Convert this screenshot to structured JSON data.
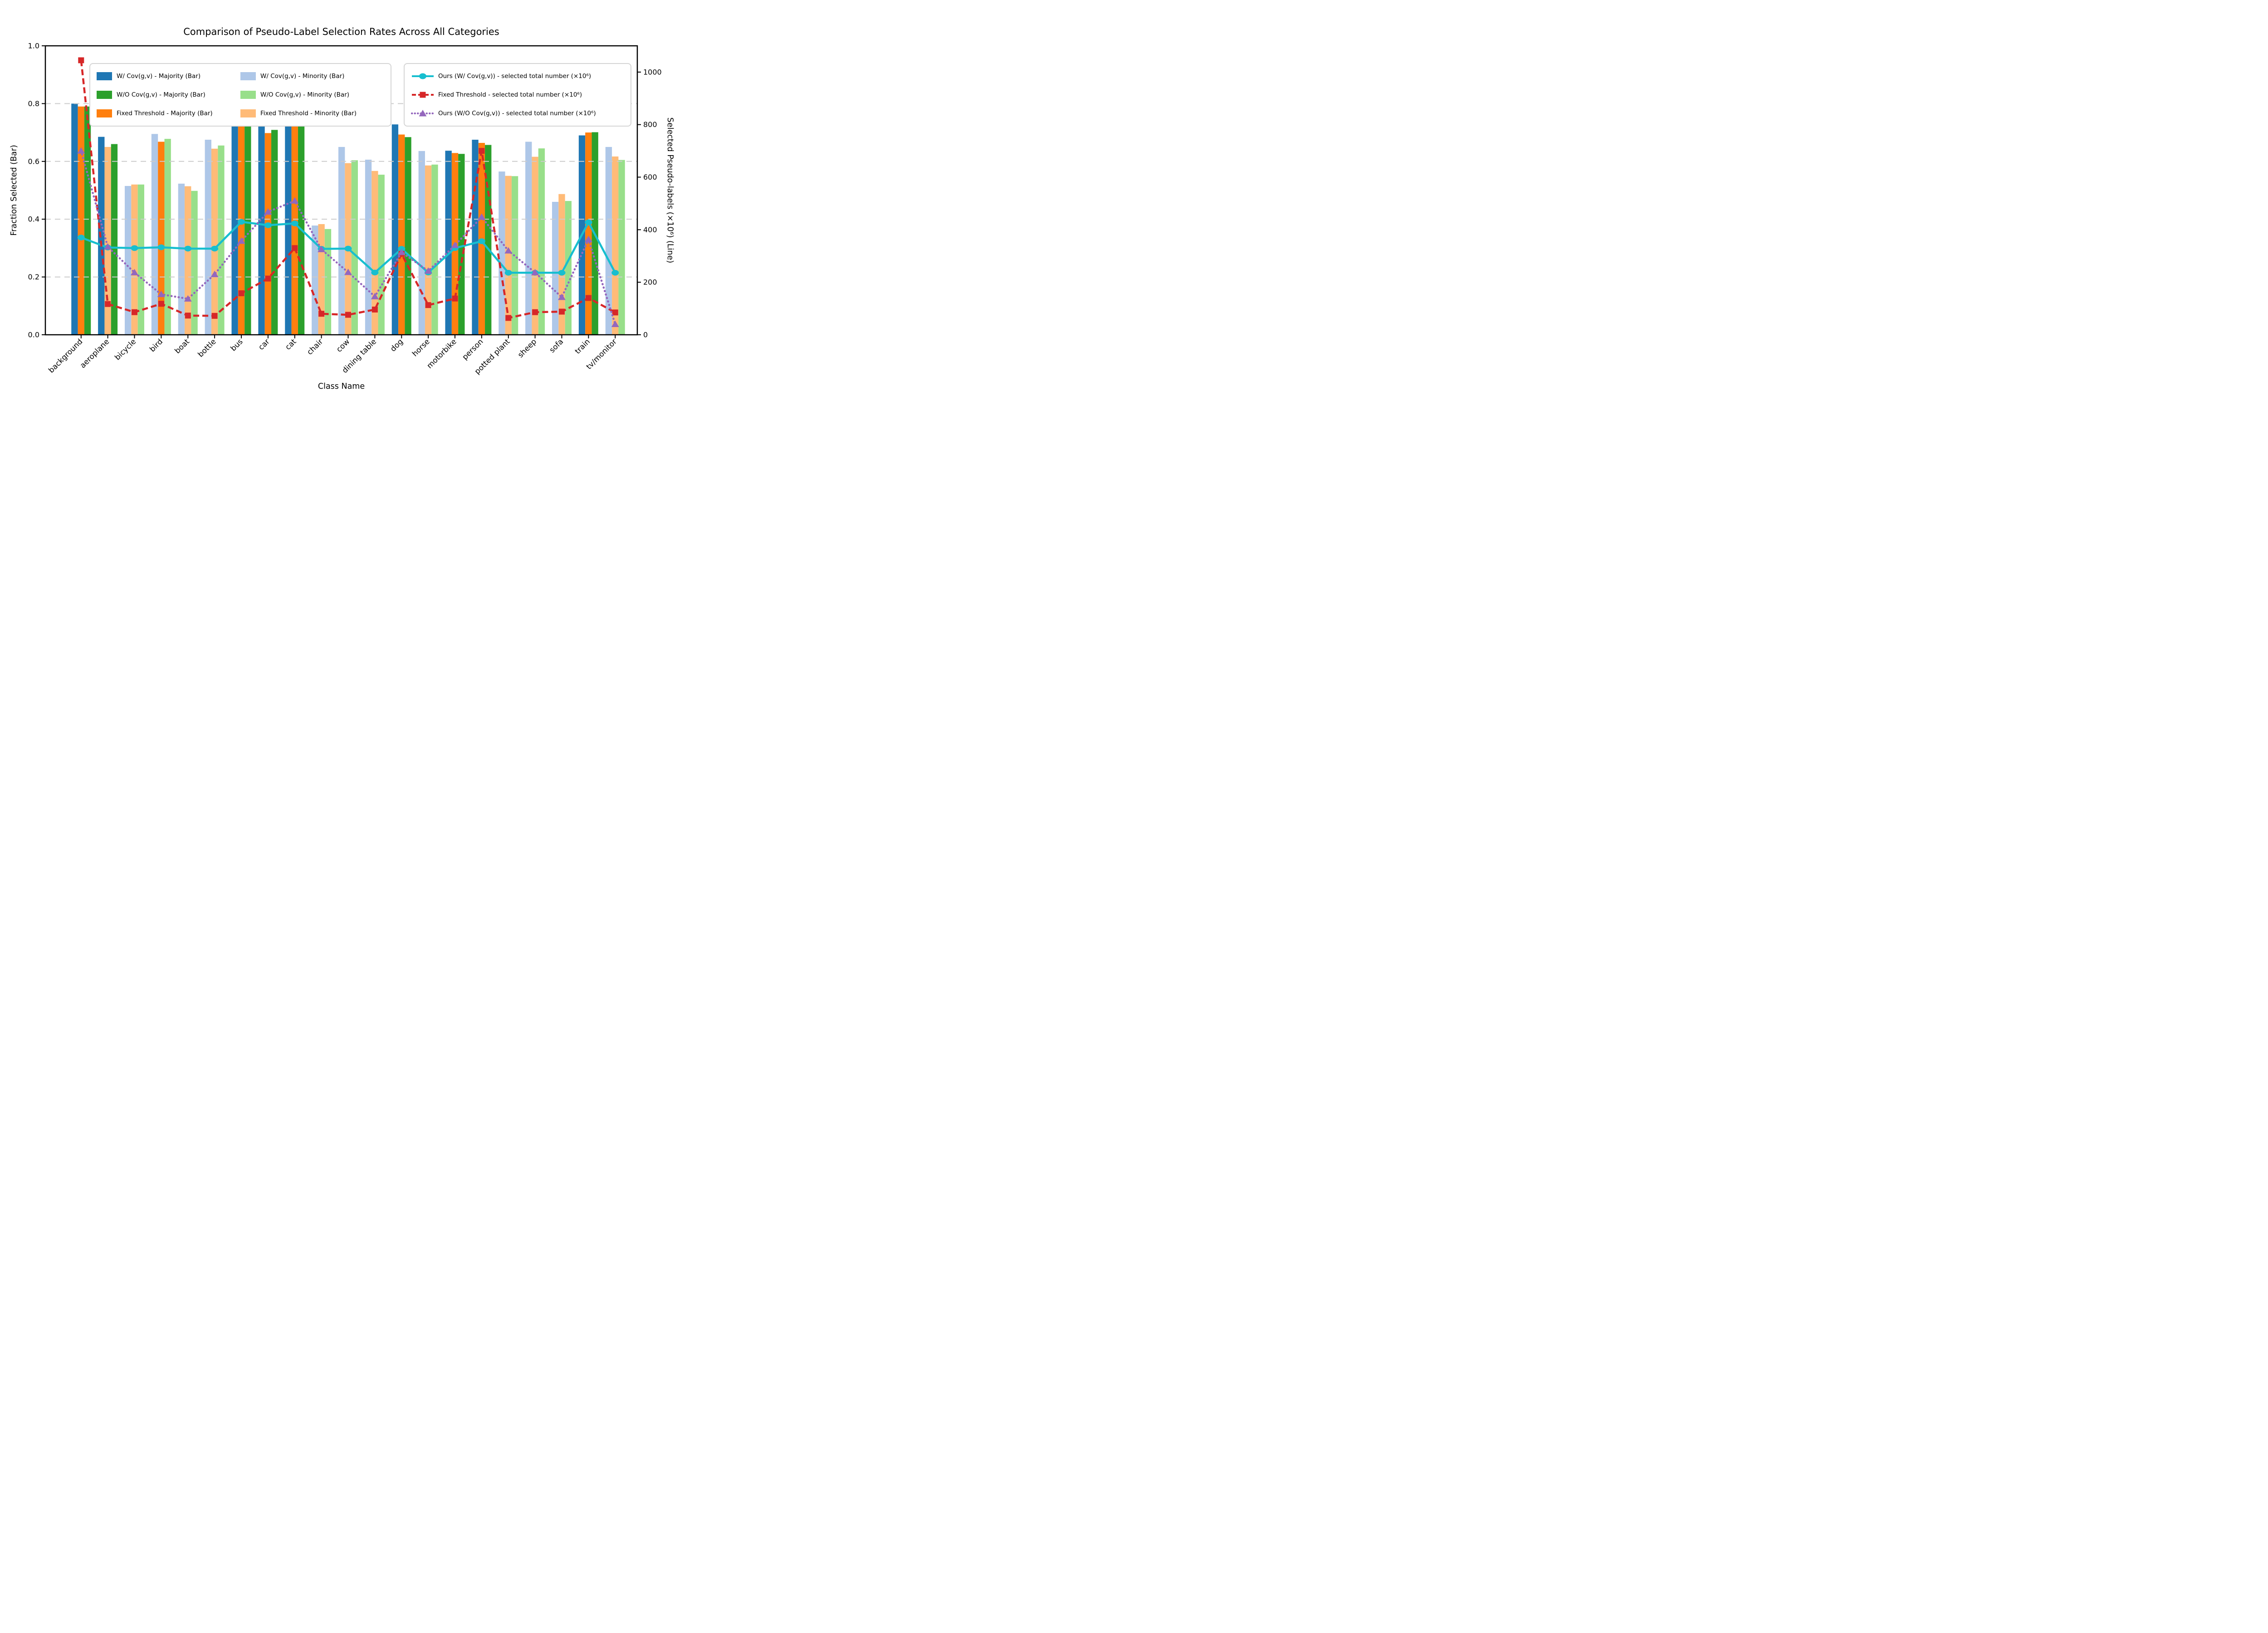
{
  "title": "Comparison of Pseudo-Label Selection Rates Across All Categories",
  "axes": {
    "x_label": "Class Name",
    "y_left_label": "Fraction Selected (Bar)",
    "y_right_label": "Selected Pseudo-labels (×10⁶) (Line)",
    "y_left_ticks": [
      "1.0",
      "0.8",
      "0.6",
      "0.4",
      "0.2",
      "0.0"
    ],
    "y_left_tick_values": [
      1.0,
      0.8,
      0.6,
      0.4,
      0.2,
      0.0
    ],
    "y_right_ticks": [
      "1000",
      "800",
      "600",
      "400",
      "200",
      "0"
    ],
    "y_right_tick_values": [
      1000,
      800,
      600,
      400,
      200,
      0
    ],
    "grid_values": [
      0.8,
      0.6,
      0.4,
      0.2
    ]
  },
  "colors": {
    "majority_blue": "#1f77b4",
    "majority_green": "#2ca02c",
    "majority_orange": "#ff7f0e",
    "minority_blue": "#aec7e8",
    "minority_green": "#98df8a",
    "minority_orange": "#ffbb78",
    "cyan_line": "#17becf",
    "red_line": "#d62728",
    "purple_line": "#9467bd",
    "grid": "#cccccc",
    "spine": "#000000"
  },
  "legend": {
    "bar_entries_col1": [
      {
        "label": "W/ Cov(g,v) - Majority (Bar)",
        "color": "#1f77b4"
      },
      {
        "label": "W/O Cov(g,v) - Majority (Bar)",
        "color": "#2ca02c"
      },
      {
        "label": "Fixed Threshold - Majority (Bar)",
        "color": "#ff7f0e"
      }
    ],
    "bar_entries_col2": [
      {
        "label": "W/ Cov(g,v) - Minority (Bar)",
        "color": "#aec7e8"
      },
      {
        "label": "W/O Cov(g,v) - Minority (Bar)",
        "color": "#98df8a"
      },
      {
        "label": "Fixed Threshold - Minority (Bar)",
        "color": "#ffbb78"
      }
    ],
    "line_entries": [
      {
        "label": "Ours (W/ Cov(g,v)) - selected total number (×10⁶)",
        "color": "#17becf",
        "marker": "circle",
        "dash": "solid"
      },
      {
        "label": "Fixed Threshold - selected total number (×10⁶)",
        "color": "#d62728",
        "marker": "square",
        "dash": "dashed"
      },
      {
        "label": "Ours (W/O Cov(g,v)) - selected total number (×10⁶)",
        "color": "#9467bd",
        "marker": "triangle",
        "dash": "dotted"
      }
    ]
  },
  "chart_data": {
    "type": "bar",
    "title": "Comparison of Pseudo-Label Selection Rates Across All Categories",
    "xlabel": "Class Name",
    "ylabel": "Fraction Selected (Bar)",
    "ylabel_right": "Selected Pseudo-labels (×10⁶) (Line)",
    "ylim": [
      0,
      1.0
    ],
    "right_ylim": [
      0,
      1100
    ],
    "grid": "horizontal dashed at 0.2,0.4,0.6,0.8",
    "legend_position": "top, two boxes",
    "categories": [
      "background",
      "aeroplane",
      "bicycle",
      "bird",
      "boat",
      "bottle",
      "bus",
      "car",
      "cat",
      "chair",
      "cow",
      "dining table",
      "dog",
      "horse",
      "motorbike",
      "person",
      "potted plant",
      "sheep",
      "sofa",
      "train",
      "tv/monitor"
    ],
    "bar_series": [
      {
        "name": "W/ Cov(g,v)",
        "majority_color": "#1f77b4",
        "minority_color": "#aec7e8",
        "is_majority": [
          true,
          true,
          false,
          false,
          false,
          false,
          true,
          true,
          true,
          false,
          false,
          false,
          true,
          false,
          true,
          true,
          false,
          false,
          false,
          true,
          false
        ],
        "values": [
          0.8,
          0.685,
          0.515,
          0.695,
          0.523,
          0.675,
          0.751,
          0.729,
          0.778,
          0.378,
          0.65,
          0.606,
          0.728,
          0.636,
          0.637,
          0.675,
          0.565,
          0.668,
          0.46,
          0.69,
          0.65
        ]
      },
      {
        "name": "Fixed Threshold",
        "majority_color": "#ff7f0e",
        "minority_color": "#ffbb78",
        "is_majority": [
          true,
          false,
          false,
          true,
          false,
          false,
          true,
          true,
          true,
          false,
          false,
          false,
          true,
          false,
          true,
          true,
          false,
          false,
          false,
          true,
          false
        ],
        "values": [
          0.79,
          0.65,
          0.52,
          0.668,
          0.514,
          0.644,
          0.743,
          0.698,
          0.739,
          0.383,
          0.594,
          0.567,
          0.693,
          0.586,
          0.629,
          0.664,
          0.55,
          0.616,
          0.487,
          0.7,
          0.617
        ]
      },
      {
        "name": "W/O Cov(g,v)",
        "majority_color": "#2ca02c",
        "minority_color": "#98df8a",
        "is_majority": [
          true,
          true,
          false,
          false,
          false,
          false,
          true,
          true,
          true,
          false,
          false,
          false,
          true,
          false,
          true,
          true,
          false,
          false,
          false,
          true,
          false
        ],
        "values": [
          0.79,
          0.66,
          0.52,
          0.678,
          0.498,
          0.655,
          0.75,
          0.709,
          0.723,
          0.366,
          0.604,
          0.554,
          0.684,
          0.589,
          0.626,
          0.657,
          0.549,
          0.645,
          0.463,
          0.701,
          0.605
        ]
      }
    ],
    "line_series": [
      {
        "name": "Ours (W/ Cov(g,v)) - selected total number (×10⁶)",
        "color": "#17becf",
        "marker": "circle",
        "dash": "solid",
        "values": [
          370,
          332,
          330,
          333,
          328,
          328,
          430,
          417,
          424,
          327,
          328,
          237,
          327,
          237,
          330,
          356,
          236,
          236,
          236,
          428,
          236
        ]
      },
      {
        "name": "Fixed Threshold - selected total number (×10⁶)",
        "color": "#d62728",
        "marker": "square",
        "dash": "dashed",
        "values": [
          1045,
          117,
          86,
          118,
          73,
          72,
          158,
          214,
          330,
          80,
          76,
          96,
          308,
          113,
          138,
          700,
          64,
          86,
          88,
          140,
          85
        ]
      },
      {
        "name": "Ours (W/O Cov(g,v)) - selected total number (×10⁶)",
        "color": "#9467bd",
        "marker": "triangle",
        "dash": "dotted",
        "values": [
          700,
          335,
          237,
          154,
          137,
          230,
          357,
          468,
          510,
          325,
          238,
          146,
          314,
          243,
          341,
          448,
          320,
          237,
          143,
          363,
          40
        ]
      }
    ]
  }
}
